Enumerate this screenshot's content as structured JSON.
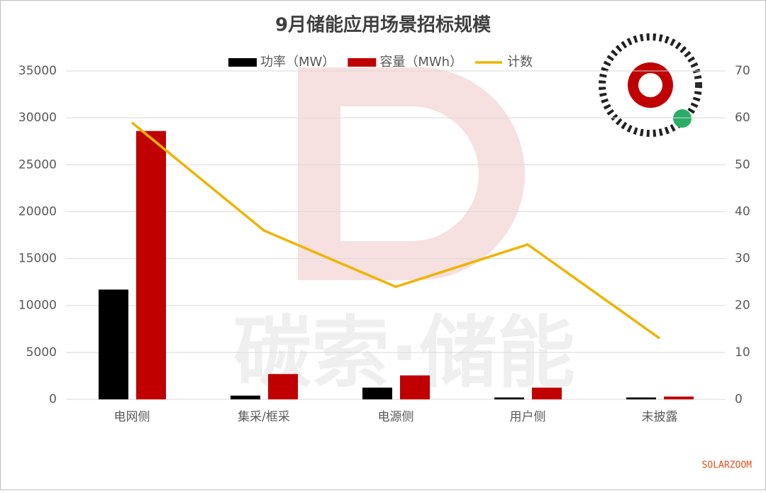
{
  "chart_data": {
    "type": "bar",
    "title": "9月储能应用场景招标规模",
    "categories": [
      "电网侧",
      "集采/框采",
      "电源侧",
      "用户侧",
      "未披露"
    ],
    "series": [
      {
        "name": "功率（MW）",
        "color": "#000000",
        "values": [
          11700,
          400,
          1250,
          200,
          200
        ]
      },
      {
        "name": "容量（MWh）",
        "color": "#c00000",
        "values": [
          28600,
          2700,
          2550,
          1250,
          300
        ]
      },
      {
        "name": "计数",
        "color": "#eeb400",
        "type": "line",
        "axis": "y2",
        "values": [
          59,
          36,
          24,
          33,
          13
        ]
      }
    ],
    "ylim": [
      0,
      35000
    ],
    "yticks": [
      0,
      5000,
      10000,
      15000,
      20000,
      25000,
      30000,
      35000
    ],
    "y2lim": [
      0,
      70
    ],
    "y2ticks": [
      0,
      10,
      20,
      30,
      40,
      50,
      60,
      70
    ],
    "grid": true,
    "legend": "top",
    "watermark": "碳索·储能",
    "credit": "SOLARZOOM"
  }
}
